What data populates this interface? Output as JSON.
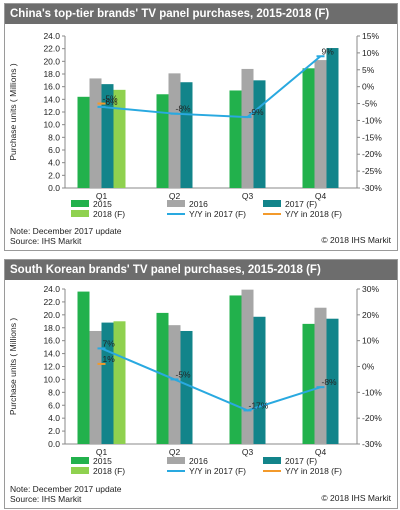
{
  "charts": [
    {
      "title": "China's top-tier brands' TV panel purchases, 2015-2018 (F)",
      "note": "Note: December 2017 update",
      "source": "Source: IHS Markit",
      "copyright": "© 2018 IHS Markit"
    },
    {
      "title": "South Korean brands' TV panel purchases, 2015-2018 (F)",
      "note": "Note: December 2017 update",
      "source": "Source: IHS Markit",
      "copyright": "© 2018 IHS Markit"
    }
  ],
  "colors": {
    "2015": "#22b14c",
    "2016": "#a6a6a6",
    "2017 (F)": "#12848a",
    "2018 (F)": "#8fd14f",
    "Y/Y in 2017 (F)": "#29a9e0",
    "Y/Y in 2018 (F)": "#f39a2b"
  },
  "chart_data": [
    {
      "type": "bar",
      "title": "China's top-tier brands' TV panel purchases, 2015-2018 (F)",
      "ylabel": "Purchase units ( Millions )",
      "categories": [
        "Q1",
        "Q2",
        "Q3",
        "Q4"
      ],
      "ylim": [
        0,
        24
      ],
      "y_ticks": [
        "0.0",
        "2.0",
        "4.0",
        "6.0",
        "8.0",
        "10.0",
        "12.0",
        "14.0",
        "16.0",
        "18.0",
        "20.0",
        "22.0",
        "24.0"
      ],
      "y2lim": [
        -30,
        15
      ],
      "y2_ticks": [
        "-30%",
        "-25%",
        "-20%",
        "-15%",
        "-10%",
        "-5%",
        "0%",
        "5%",
        "10%",
        "15%"
      ],
      "series": [
        {
          "name": "2015",
          "values": [
            14.4,
            14.8,
            15.4,
            18.9
          ]
        },
        {
          "name": "2016",
          "values": [
            17.3,
            18.1,
            18.8,
            20.2
          ]
        },
        {
          "name": "2017 (F)",
          "values": [
            16.4,
            16.7,
            17.0,
            22.1
          ]
        },
        {
          "name": "2018 (F)",
          "values": [
            15.5,
            null,
            null,
            null
          ]
        }
      ],
      "line_series": [
        {
          "name": "Y/Y in 2017 (F)",
          "values": [
            -6,
            -8,
            -9,
            9
          ],
          "labels": [
            "-6%",
            "-8%",
            "-9%",
            "9%"
          ]
        },
        {
          "name": "Y/Y in 2018 (F)",
          "values": [
            -5,
            null,
            null,
            null
          ],
          "labels": [
            "-5%",
            "",
            "",
            ""
          ]
        }
      ],
      "legend": [
        "2015",
        "2016",
        "2017 (F)",
        "2018 (F)",
        "Y/Y in 2017 (F)",
        "Y/Y in 2018 (F)"
      ],
      "legend_position": "bottom",
      "grid": false
    },
    {
      "type": "bar",
      "title": "South Korean brands' TV panel purchases, 2015-2018 (F)",
      "ylabel": "Purchase units ( Millions )",
      "categories": [
        "Q1",
        "Q2",
        "Q3",
        "Q4"
      ],
      "ylim": [
        0,
        24
      ],
      "y_ticks": [
        "0.0",
        "2.0",
        "4.0",
        "6.0",
        "8.0",
        "10.0",
        "12.0",
        "14.0",
        "16.0",
        "18.0",
        "20.0",
        "22.0",
        "24.0"
      ],
      "y2lim": [
        -30,
        30
      ],
      "y2_ticks": [
        "-30%",
        "-20%",
        "-10%",
        "0%",
        "10%",
        "20%",
        "30%"
      ],
      "series": [
        {
          "name": "2015",
          "values": [
            23.6,
            20.3,
            23.0,
            18.6
          ]
        },
        {
          "name": "2016",
          "values": [
            17.5,
            18.4,
            23.9,
            21.1
          ]
        },
        {
          "name": "2017 (F)",
          "values": [
            18.8,
            17.5,
            19.7,
            19.4
          ]
        },
        {
          "name": "2018 (F)",
          "values": [
            19.0,
            null,
            null,
            null
          ]
        }
      ],
      "line_series": [
        {
          "name": "Y/Y in 2017 (F)",
          "values": [
            7,
            -5,
            -17,
            -8
          ],
          "labels": [
            "7%",
            "-5%",
            "-17%",
            "-8%"
          ]
        },
        {
          "name": "Y/Y in 2018 (F)",
          "values": [
            1,
            null,
            null,
            null
          ],
          "labels": [
            "1%",
            "",
            "",
            ""
          ]
        }
      ],
      "legend": [
        "2015",
        "2016",
        "2017 (F)",
        "2018 (F)",
        "Y/Y in 2017 (F)",
        "Y/Y in 2018 (F)"
      ],
      "legend_position": "bottom",
      "grid": false
    }
  ]
}
